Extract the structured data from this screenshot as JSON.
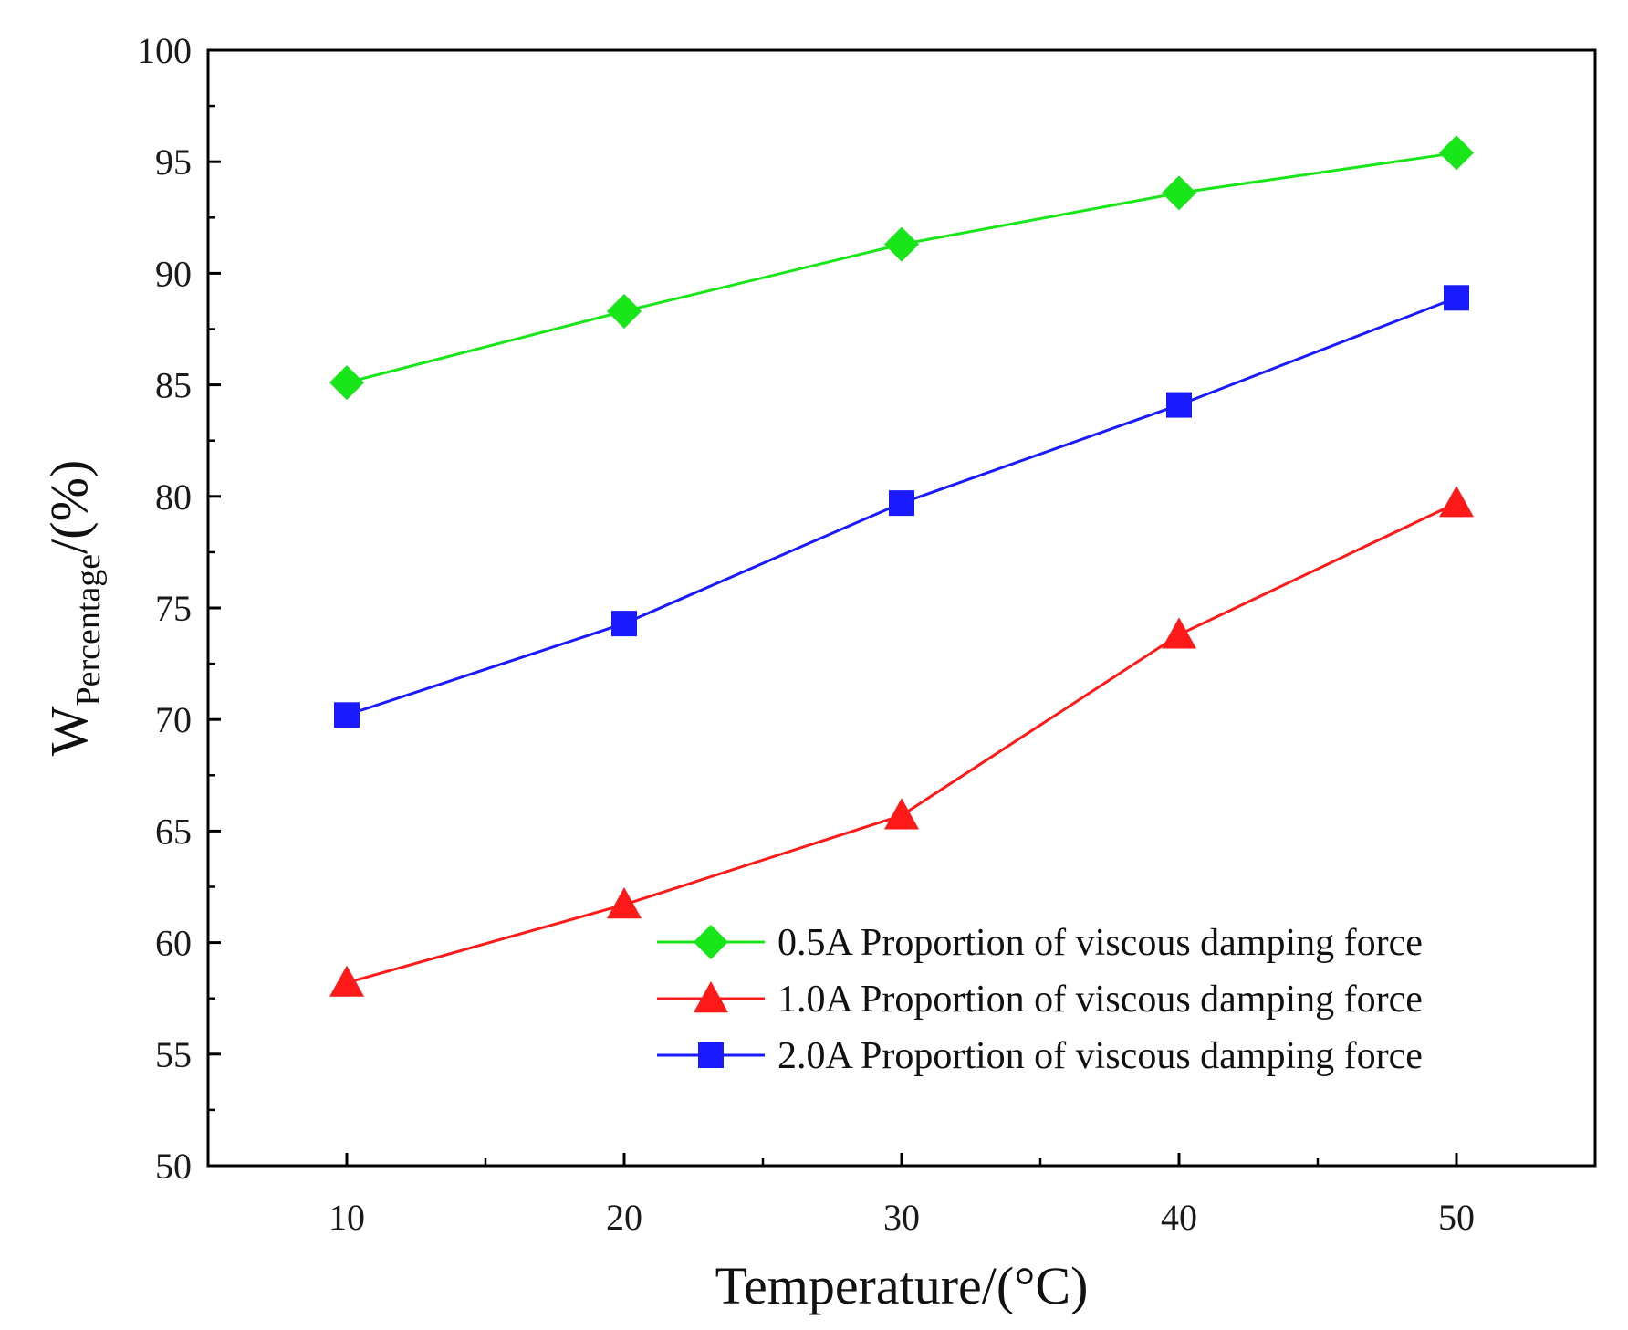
{
  "chart_data": {
    "type": "line",
    "title": "",
    "xlabel": "Temperature/(°C)",
    "ylabel": {
      "main": "W",
      "subscript": "Percentage",
      "suffix": "/(%)"
    },
    "xlim": [
      5,
      55
    ],
    "ylim": [
      50,
      100
    ],
    "x": [
      10,
      20,
      30,
      40,
      50
    ],
    "x_tick_labels": [
      "10",
      "20",
      "30",
      "40",
      "50"
    ],
    "y_tick_labels": [
      "50",
      "55",
      "60",
      "65",
      "70",
      "75",
      "80",
      "85",
      "90",
      "95",
      "100"
    ],
    "grid": false,
    "legend_position": "lower-right",
    "series": [
      {
        "name": "0.5A Proportion of viscous damping force",
        "color": "#19e619",
        "marker": "diamond",
        "values": [
          85.1,
          88.3,
          91.3,
          93.6,
          95.4
        ]
      },
      {
        "name": "1.0A Proportion of viscous damping force",
        "color": "#ff1a1a",
        "marker": "triangle",
        "values": [
          58.2,
          61.7,
          65.7,
          73.8,
          79.7
        ]
      },
      {
        "name": "2.0A Proportion of viscous damping force",
        "color": "#1a1aff",
        "marker": "square",
        "values": [
          70.2,
          74.3,
          79.7,
          84.1,
          88.9
        ]
      }
    ]
  }
}
